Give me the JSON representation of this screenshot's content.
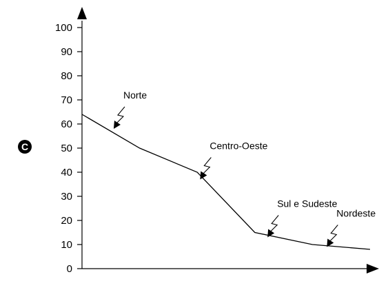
{
  "chart_data": {
    "type": "line",
    "x": [
      0,
      1,
      2,
      3,
      4,
      5
    ],
    "values": [
      64,
      50,
      40,
      15,
      10,
      8
    ],
    "xlim": [
      0,
      5
    ],
    "ylim": [
      0,
      100
    ],
    "yticks": [
      0,
      10,
      20,
      30,
      40,
      50,
      60,
      70,
      80,
      90,
      100
    ],
    "title": "",
    "xlabel": "",
    "ylabel": "",
    "grid": false,
    "legend": "none",
    "line_color": "#000000",
    "annotations": [
      {
        "label": "Norte",
        "x": 0.55,
        "y": 58
      },
      {
        "label": "Centro-Oeste",
        "x": 2.05,
        "y": 37
      },
      {
        "label": "Sul e Sudeste",
        "x": 3.22,
        "y": 13
      },
      {
        "label": "Nordeste",
        "x": 4.25,
        "y": 9
      }
    ]
  },
  "badge": {
    "letter": "C",
    "color": "#000000"
  }
}
